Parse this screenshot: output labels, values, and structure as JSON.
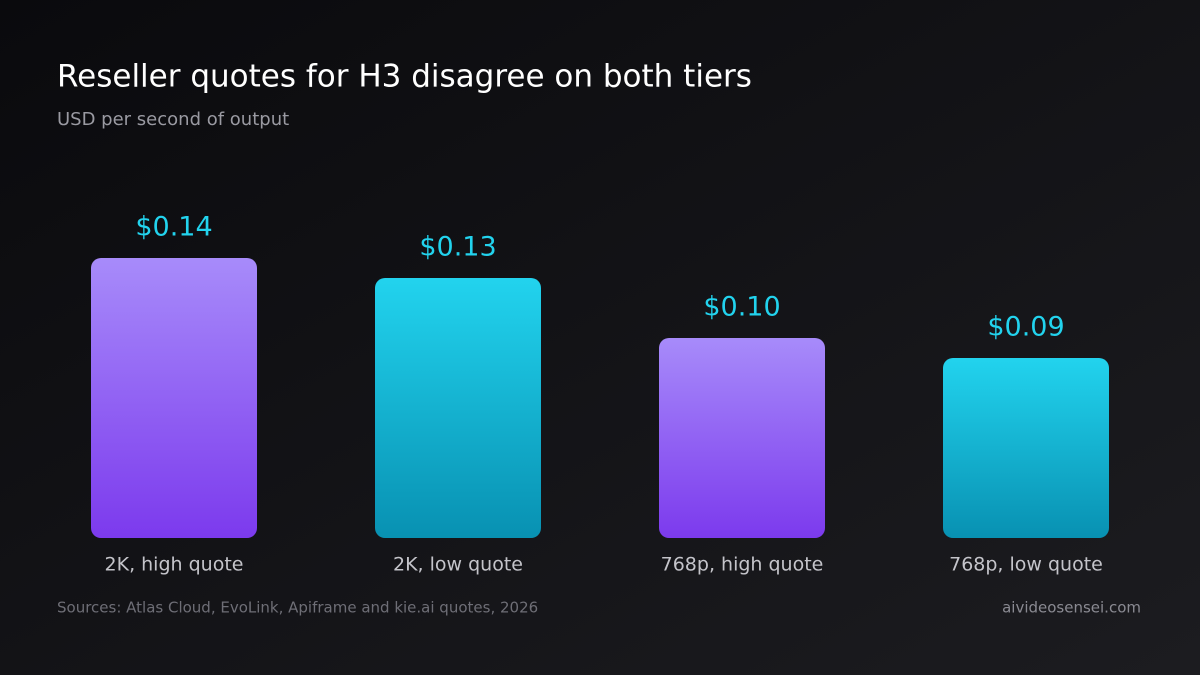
{
  "chart_data": {
    "type": "bar",
    "title": "Reseller quotes for H3 disagree on both tiers",
    "subtitle": "USD per second of output",
    "categories": [
      "2K, high quote",
      "2K, low quote",
      "768p, high quote",
      "768p, low quote"
    ],
    "values": [
      0.14,
      0.13,
      0.1,
      0.09
    ],
    "value_labels": [
      "$0.14",
      "$0.13",
      "$0.10",
      "$0.09"
    ],
    "colors": [
      [
        "#a78bfa",
        "#7c3aed"
      ],
      [
        "#22d3ee",
        "#0891b2"
      ],
      [
        "#a78bfa",
        "#7c3aed"
      ],
      [
        "#22d3ee",
        "#0891b2"
      ]
    ],
    "value_label_color": "#22d3ee",
    "source": "Sources: Atlas Cloud, EvoLink, Apiframe and kie.ai quotes, 2026",
    "credit": "aivideosensei.com"
  }
}
